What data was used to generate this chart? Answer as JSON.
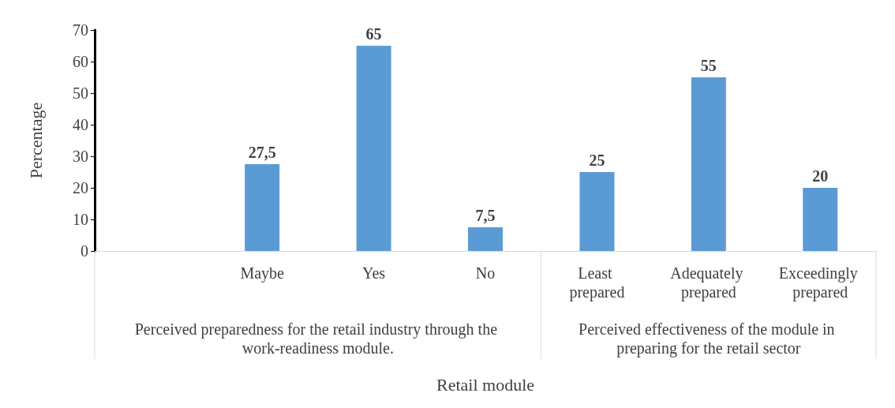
{
  "chart_data": {
    "type": "bar",
    "categories": [
      null,
      "Maybe",
      "Yes",
      "No",
      "Least prepared",
      "Adequately prepared",
      "Exceedingly prepared"
    ],
    "values": [
      null,
      27.5,
      65,
      7.5,
      25,
      55,
      20
    ],
    "value_labels": [
      null,
      "27,5",
      "65",
      "7,5",
      "25",
      "55",
      "20"
    ],
    "color": "#5b9bd5",
    "ylim": [
      0,
      70
    ],
    "yticks": [
      0,
      10,
      20,
      30,
      40,
      50,
      60,
      70
    ],
    "xlabel": "Retail module",
    "ylabel": "Percentage",
    "annotations": [
      "Perceived preparedness for the retail industry through the work-readiness module.",
      "Perceived effectiveness of the module in preparing for the retail sector"
    ],
    "grid": false
  }
}
